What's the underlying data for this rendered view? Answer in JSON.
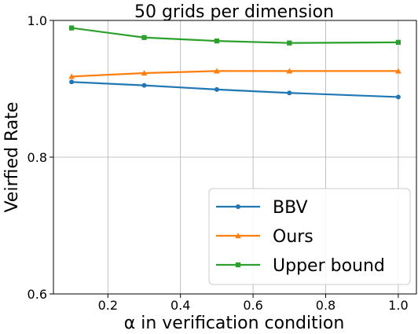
{
  "chart_data": {
    "type": "line",
    "title": "50 grids per dimension",
    "xlabel": "α in verification condition",
    "ylabel": "Veirfied Rate",
    "x": [
      0.1,
      0.3,
      0.5,
      0.7,
      1.0
    ],
    "xlim": [
      0.05,
      1.05
    ],
    "ylim": [
      0.6,
      1.0
    ],
    "xticks": [
      0.2,
      0.4,
      0.6,
      0.8,
      1.0
    ],
    "yticks": [
      0.6,
      0.8,
      1.0
    ],
    "xtick_labels": [
      "0.2",
      "0.4",
      "0.6",
      "0.8",
      "1.0"
    ],
    "ytick_labels": [
      "0.6",
      "0.8",
      "1.0"
    ],
    "grid": true,
    "legend_position": "lower-right",
    "series": [
      {
        "name": "BBV",
        "color": "#1f77b4",
        "marker": "circle",
        "values": [
          0.91,
          0.905,
          0.899,
          0.894,
          0.888
        ]
      },
      {
        "name": "Ours",
        "color": "#ff7f0e",
        "marker": "triangle",
        "values": [
          0.918,
          0.923,
          0.926,
          0.926,
          0.926
        ]
      },
      {
        "name": "Upper bound",
        "color": "#2ca02c",
        "marker": "square",
        "values": [
          0.989,
          0.975,
          0.97,
          0.967,
          0.968
        ]
      }
    ]
  }
}
